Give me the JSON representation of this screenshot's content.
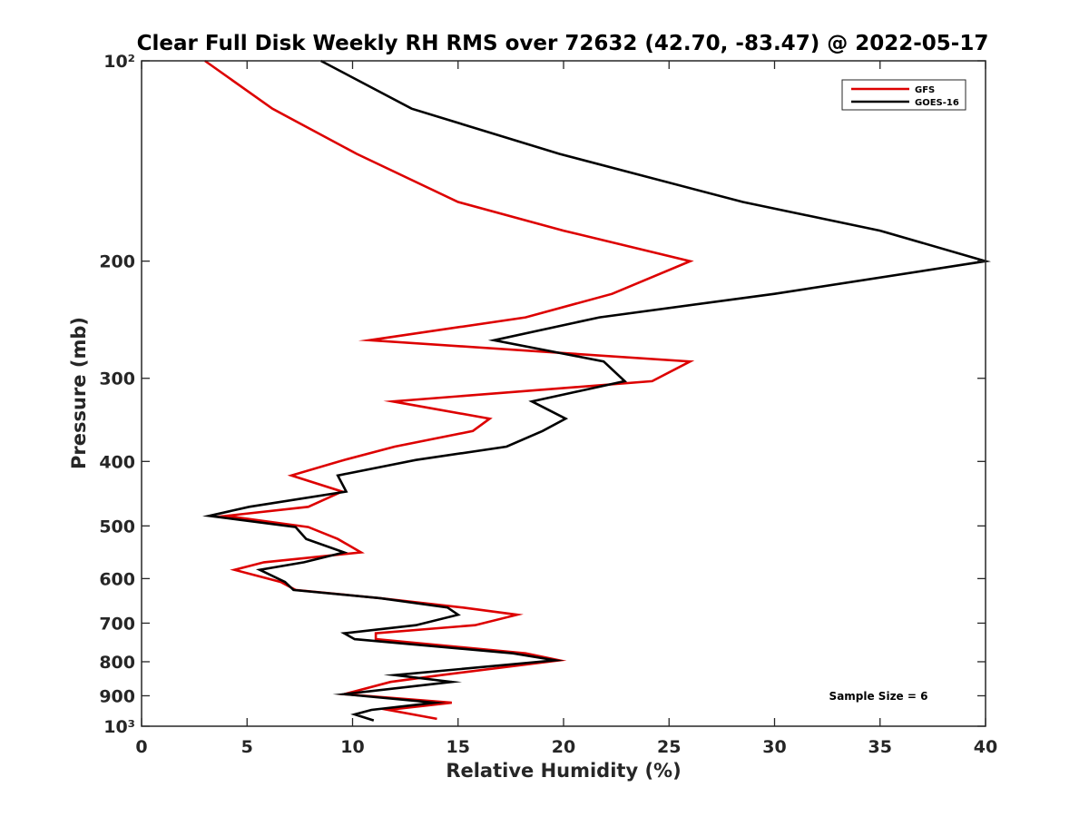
{
  "chart_data": {
    "type": "line",
    "title": "Clear Full Disk Weekly RH RMS over 72632 (42.70, -83.47) @ 2022-05-17",
    "xlabel": "Relative Humidity (%)",
    "ylabel": "Pressure (mb)",
    "xlim": [
      0,
      40
    ],
    "ylim": [
      100,
      1000
    ],
    "y_scale": "log",
    "y_reversed": true,
    "grid": false,
    "legend_position": "top-right",
    "x_ticks": [
      0,
      5,
      10,
      15,
      20,
      25,
      30,
      35,
      40
    ],
    "x_tick_labels": [
      "0",
      "5",
      "10",
      "15",
      "20",
      "25",
      "30",
      "35",
      "40"
    ],
    "y_ticks": [
      100,
      200,
      300,
      400,
      500,
      600,
      700,
      800,
      900,
      1000
    ],
    "y_tick_labels": [
      "10²",
      "200",
      "300",
      "400",
      "500",
      "600",
      "700",
      "800",
      "900",
      "10³"
    ],
    "annotation": "Sample Size = 6",
    "series": [
      {
        "name": "GFS",
        "color": "#dd0000",
        "points": [
          [
            3.0,
            100
          ],
          [
            6.2,
            118
          ],
          [
            10.2,
            138
          ],
          [
            15.0,
            163
          ],
          [
            20.0,
            180
          ],
          [
            26.0,
            200
          ],
          [
            22.3,
            224
          ],
          [
            18.2,
            243
          ],
          [
            10.8,
            263
          ],
          [
            26.0,
            283
          ],
          [
            24.2,
            303
          ],
          [
            11.9,
            325
          ],
          [
            16.5,
            345
          ],
          [
            15.7,
            360
          ],
          [
            12.0,
            380
          ],
          [
            9.6,
            398
          ],
          [
            7.1,
            420
          ],
          [
            9.5,
            444
          ],
          [
            7.9,
            468
          ],
          [
            4.0,
            483
          ],
          [
            7.9,
            502
          ],
          [
            9.3,
            523
          ],
          [
            10.4,
            548
          ],
          [
            5.8,
            567
          ],
          [
            4.4,
            582
          ],
          [
            6.6,
            607
          ],
          [
            7.3,
            624
          ],
          [
            11.3,
            642
          ],
          [
            15.2,
            663
          ],
          [
            17.8,
            680
          ],
          [
            15.8,
            705
          ],
          [
            11.1,
            725
          ],
          [
            11.1,
            740
          ],
          [
            18.2,
            777
          ],
          [
            19.8,
            796
          ],
          [
            14.2,
            838
          ],
          [
            11.8,
            858
          ],
          [
            9.6,
            895
          ],
          [
            14.7,
            922
          ],
          [
            11.7,
            945
          ],
          [
            14.0,
            975
          ]
        ]
      },
      {
        "name": "GOES-16",
        "color": "#000000",
        "points": [
          [
            8.5,
            100
          ],
          [
            12.8,
            118
          ],
          [
            19.8,
            138
          ],
          [
            28.5,
            163
          ],
          [
            35.0,
            180
          ],
          [
            40.0,
            200
          ],
          [
            30.0,
            224
          ],
          [
            21.7,
            243
          ],
          [
            16.7,
            263
          ],
          [
            21.9,
            283
          ],
          [
            22.9,
            303
          ],
          [
            18.5,
            325
          ],
          [
            20.1,
            345
          ],
          [
            19.0,
            360
          ],
          [
            17.3,
            380
          ],
          [
            13.0,
            398
          ],
          [
            9.3,
            420
          ],
          [
            9.7,
            444
          ],
          [
            5.1,
            468
          ],
          [
            3.2,
            483
          ],
          [
            7.3,
            502
          ],
          [
            7.8,
            523
          ],
          [
            9.6,
            548
          ],
          [
            7.7,
            567
          ],
          [
            5.6,
            582
          ],
          [
            6.8,
            607
          ],
          [
            7.2,
            624
          ],
          [
            11.3,
            642
          ],
          [
            14.5,
            663
          ],
          [
            15.0,
            680
          ],
          [
            13.0,
            705
          ],
          [
            9.6,
            725
          ],
          [
            10.1,
            740
          ],
          [
            17.6,
            777
          ],
          [
            19.6,
            796
          ],
          [
            12.0,
            838
          ],
          [
            14.7,
            858
          ],
          [
            9.6,
            895
          ],
          [
            13.9,
            922
          ],
          [
            10.9,
            945
          ],
          [
            10.1,
            960
          ],
          [
            11.0,
            980
          ]
        ]
      }
    ]
  }
}
